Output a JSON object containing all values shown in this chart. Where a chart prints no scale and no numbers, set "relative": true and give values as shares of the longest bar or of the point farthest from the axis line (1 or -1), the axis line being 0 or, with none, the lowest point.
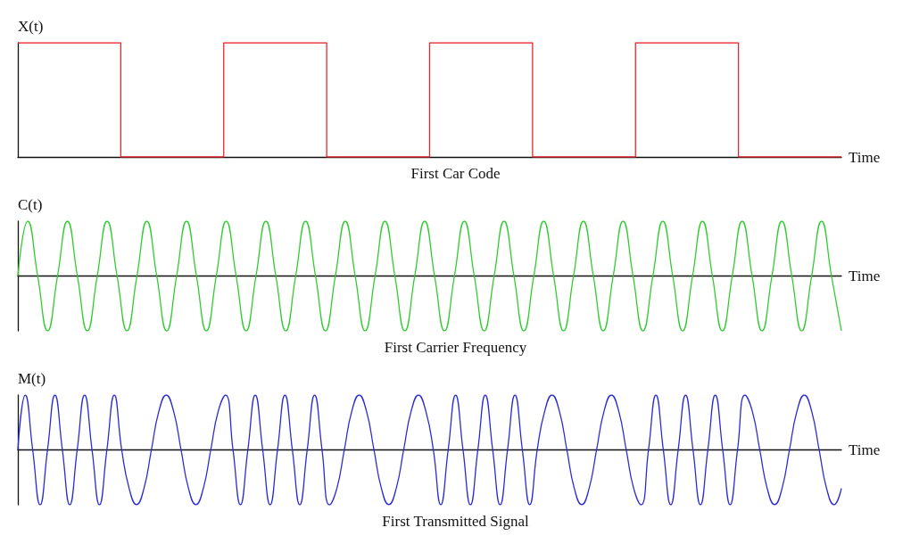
{
  "chart_data": [
    {
      "type": "step",
      "title": "First Car Code",
      "xlabel": "Time",
      "ylabel": "X(t)",
      "relative": true,
      "tick_labels": false,
      "marker": "none",
      "categories": [
        null,
        null,
        null,
        null,
        null,
        null,
        null,
        null,
        null
      ],
      "series": [
        {
          "color": "#e8262a",
          "values": [
            1,
            0,
            1,
            0,
            1,
            0,
            1,
            0,
            0
          ]
        }
      ]
    },
    {
      "type": "line",
      "title": "First Carrier Frequency",
      "xlabel": "Time",
      "ylabel": "C(t)",
      "relative": true,
      "tick_labels": false,
      "marker": "none",
      "categories": [
        null,
        null,
        null,
        null,
        null,
        null,
        null,
        null,
        null,
        null,
        null,
        null,
        null,
        null,
        null,
        null,
        null,
        null,
        null,
        null,
        null,
        null,
        null,
        null,
        null,
        null,
        null,
        null,
        null,
        null,
        null,
        null,
        null,
        null,
        null,
        null,
        null,
        null,
        null,
        null,
        null,
        null,
        null,
        null,
        null,
        null,
        null,
        null,
        null,
        null,
        null,
        null,
        null,
        null,
        null,
        null,
        null,
        null,
        null,
        null,
        null,
        null,
        null,
        null,
        null,
        null,
        null,
        null,
        null,
        null,
        null,
        null,
        null,
        null,
        null,
        null,
        null,
        null,
        null,
        null,
        null,
        null,
        null,
        null
      ],
      "series": [
        {
          "color": "#2ecc2e",
          "values": [
            0,
            1,
            0,
            -1,
            0,
            1,
            0,
            -1,
            0,
            1,
            0,
            -1,
            0,
            1,
            0,
            -1,
            0,
            1,
            0,
            -1,
            0,
            1,
            0,
            -1,
            0,
            1,
            0,
            -1,
            0,
            1,
            0,
            -1,
            0,
            1,
            0,
            -1,
            0,
            1,
            0,
            -1,
            0,
            1,
            0,
            -1,
            0,
            1,
            0,
            -1,
            0,
            1,
            0,
            -1,
            0,
            1,
            0,
            -1,
            0,
            1,
            0,
            -1,
            0,
            1,
            0,
            -1,
            0,
            1,
            0,
            -1,
            0,
            1,
            0,
            -1,
            0,
            1,
            0,
            -1,
            0,
            1,
            0,
            -1,
            0,
            1,
            0,
            -1
          ]
        }
      ]
    },
    {
      "type": "line",
      "title": "First Transmitted Signal",
      "xlabel": "Time",
      "ylabel": "M(t)",
      "relative": true,
      "tick_labels": false,
      "marker": "none",
      "categories": [
        null,
        null,
        null,
        null,
        null,
        null,
        null,
        null,
        null,
        null,
        null,
        null,
        null,
        null,
        null,
        null,
        null,
        null,
        null,
        null,
        null,
        null,
        null,
        null,
        null,
        null,
        null,
        null,
        null,
        null,
        null,
        null,
        null,
        null,
        null,
        null,
        null,
        null,
        null,
        null,
        null,
        null,
        null,
        null,
        null,
        null,
        null,
        null,
        null,
        null,
        null,
        null,
        null,
        null,
        null,
        null,
        null,
        null,
        null,
        null,
        null,
        null,
        null,
        null,
        null,
        null,
        null,
        null,
        null,
        null,
        null,
        null,
        null,
        null,
        null,
        null,
        null,
        null,
        null,
        null,
        null,
        null,
        null,
        null,
        null,
        null,
        null,
        null,
        null,
        null,
        null,
        null,
        null,
        null,
        null,
        null,
        null,
        null,
        null,
        null,
        null,
        null,
        null,
        null,
        null,
        null,
        null,
        null,
        null,
        null,
        null,
        null
      ],
      "series": [
        {
          "color": "#2b2bd6",
          "values": [
            0,
            1,
            0,
            -1,
            0,
            1,
            0,
            -1,
            0,
            1,
            0,
            -1,
            0,
            1,
            0,
            -0.7,
            -1,
            -0.7,
            0,
            0.7,
            1,
            0.7,
            0,
            -0.7,
            -1,
            -0.7,
            0,
            0.7,
            1,
            0,
            -1,
            0,
            1,
            0,
            -1,
            0,
            1,
            0,
            -1,
            0,
            1,
            0,
            -1,
            -0.7,
            0,
            0.7,
            1,
            0.7,
            0,
            -0.7,
            -1,
            -0.7,
            0,
            0.7,
            1,
            0.7,
            0,
            -1,
            0,
            1,
            0,
            -1,
            0,
            1,
            0,
            -1,
            0,
            1,
            0,
            -1,
            0,
            0.7,
            1,
            0.7,
            0,
            -0.7,
            -1,
            -0.7,
            0,
            0.7,
            1,
            0.7,
            0,
            -0.7,
            -1,
            0,
            1,
            0,
            -1,
            0,
            1,
            0,
            -1,
            0,
            1,
            0,
            -1,
            0,
            1,
            0.7,
            0,
            -0.7,
            -1,
            -0.7,
            0,
            0.7,
            1,
            0.7,
            0,
            -0.7,
            -1,
            -0.7
          ]
        }
      ]
    }
  ]
}
